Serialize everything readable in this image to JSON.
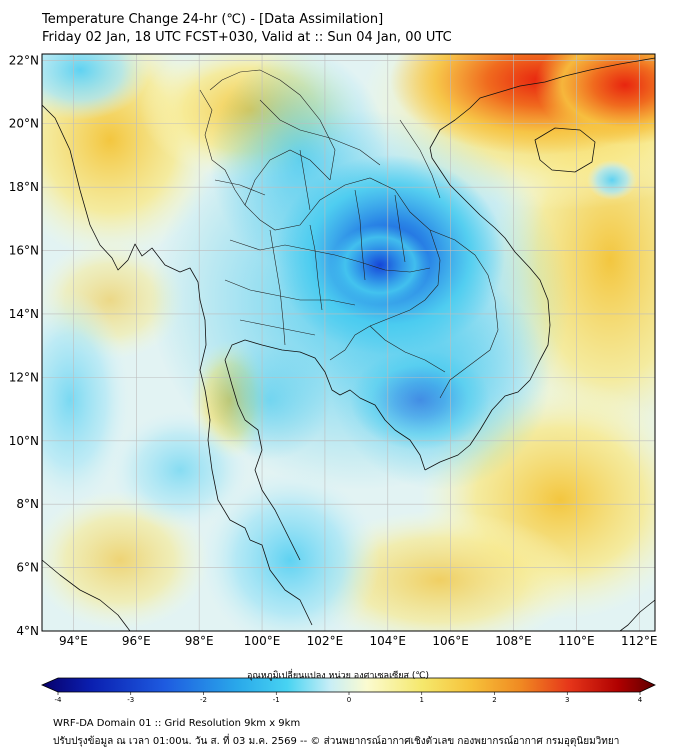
{
  "header": {
    "title": "Temperature Change 24-hr (℃) - [Data Assimilation]",
    "subtitle": "Friday 02 Jan, 18 UTC FCST+030, Valid at :: Sun 04 Jan, 00 UTC"
  },
  "map": {
    "lat_labels": [
      "22°N",
      "20°N",
      "18°N",
      "16°N",
      "14°N",
      "12°N",
      "10°N",
      "8°N",
      "6°N",
      "4°N"
    ],
    "lon_labels": [
      "94°E",
      "96°E",
      "98°E",
      "100°E",
      "102°E",
      "104°E",
      "106°E",
      "108°E",
      "110°E",
      "112°E"
    ],
    "lat_range": [
      4,
      22.2
    ],
    "lon_range": [
      93,
      112.5
    ],
    "field_features": [
      {
        "name": "cold-core-northeast-thailand",
        "lon": 103.8,
        "lat": 15.8,
        "delta_c": -2.0
      },
      {
        "name": "warm-south-china",
        "lon": 108.0,
        "lat": 21.6,
        "delta_c": 3.0
      },
      {
        "name": "warm-myanmar-west",
        "lon": 95.5,
        "lat": 19.5,
        "delta_c": 1.3
      },
      {
        "name": "warm-gulf-of-thailand",
        "lon": 98.5,
        "lat": 11.0,
        "delta_c": 1.2
      },
      {
        "name": "warm-south-china-sea",
        "lon": 109.5,
        "lat": 8.0,
        "delta_c": 1.4
      }
    ]
  },
  "colorbar": {
    "title": "อุณหภูมิเปลี่ยนแปลง หน่วย องศาเซลเซียส (℃)",
    "ticks": [
      "-4",
      "-3",
      "-2",
      "-1",
      "0",
      "1",
      "2",
      "3",
      "4"
    ],
    "min": -4,
    "max": 4,
    "colors": [
      "#08006b",
      "#0a1fb0",
      "#1e5be0",
      "#2aa9ea",
      "#47d3f2",
      "#c8eef6",
      "#fbfbd0",
      "#f5e86c",
      "#f6c23a",
      "#f08a22",
      "#e6361a",
      "#b00000",
      "#5e0000"
    ]
  },
  "footer": {
    "line1": "WRF-DA Domain 01 :: Grid Resolution 9km x 9km",
    "line2": "ปรับปรุงข้อมูล ณ เวลา 01:00น. วัน ส. ที่ 03 ม.ค. 2569 -- © ส่วนพยากรณ์อากาศเชิงตัวเลข กองพยากรณ์อากาศ กรมอุตุนิยมวิทยา"
  }
}
